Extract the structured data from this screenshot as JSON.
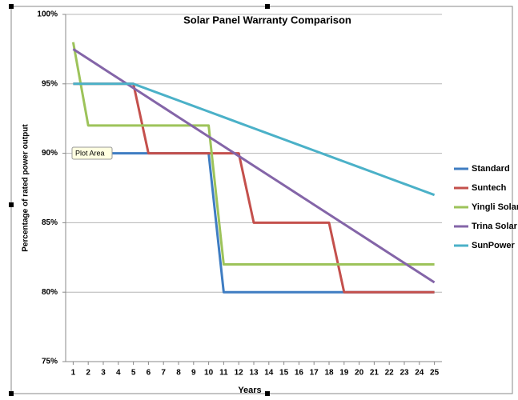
{
  "chart_data": {
    "type": "line",
    "title": "Solar Panel Warranty Comparison",
    "x_label": "Years",
    "y_label": "Percentage of rated power output",
    "tooltip": "Plot Area",
    "x": [
      1,
      2,
      3,
      4,
      5,
      6,
      7,
      8,
      9,
      10,
      11,
      12,
      13,
      14,
      15,
      16,
      17,
      18,
      19,
      20,
      21,
      22,
      23,
      24,
      25
    ],
    "xlim": [
      0.5,
      25.5
    ],
    "xticks": [
      1,
      2,
      3,
      4,
      5,
      6,
      7,
      8,
      9,
      10,
      11,
      12,
      13,
      14,
      15,
      16,
      17,
      18,
      19,
      20,
      21,
      22,
      23,
      24,
      25
    ],
    "ylim": [
      75,
      100
    ],
    "yticks": [
      {
        "value": 75,
        "label": "75%"
      },
      {
        "value": 80,
        "label": "80%"
      },
      {
        "value": 85,
        "label": "85%"
      },
      {
        "value": 90,
        "label": "90%"
      },
      {
        "value": 95,
        "label": "95%"
      },
      {
        "value": 100,
        "label": "100%"
      }
    ],
    "grid": true,
    "legend": "right",
    "series": [
      {
        "name": "Standard",
        "color": "#3f7dc2",
        "values": [
          90,
          90,
          90,
          90,
          90,
          90,
          90,
          90,
          90,
          90,
          80,
          80,
          80,
          80,
          80,
          80,
          80,
          80,
          80,
          80,
          80,
          80,
          80,
          80,
          80
        ]
      },
      {
        "name": "Suntech",
        "color": "#c4504c",
        "values": [
          95,
          95,
          95,
          95,
          95,
          90,
          90,
          90,
          90,
          90,
          90,
          90,
          85,
          85,
          85,
          85,
          85,
          85,
          80,
          80,
          80,
          80,
          80,
          80,
          80
        ]
      },
      {
        "name": "Yingli Solar",
        "color": "#9dc35a",
        "values": [
          98,
          92,
          92,
          92,
          92,
          92,
          92,
          92,
          92,
          92,
          82,
          82,
          82,
          82,
          82,
          82,
          82,
          82,
          82,
          82,
          82,
          82,
          82,
          82,
          82
        ]
      },
      {
        "name": "Trina Solar",
        "color": "#8465a8",
        "values": [
          97.5,
          96.8,
          96.1,
          95.4,
          94.7,
          94,
          93.3,
          92.6,
          91.9,
          91.2,
          90.5,
          89.8,
          89.1,
          88.4,
          87.7,
          87,
          86.3,
          85.6,
          84.9,
          84.2,
          83.5,
          82.8,
          82.1,
          81.4,
          80.7
        ]
      },
      {
        "name": "SunPower",
        "color": "#4bb1c8",
        "values": [
          95,
          95,
          95,
          95,
          95,
          94.6,
          94.2,
          93.8,
          93.4,
          93,
          92.6,
          92.2,
          91.8,
          91.4,
          91,
          90.6,
          90.2,
          89.8,
          89.4,
          89,
          88.6,
          88.2,
          87.8,
          87.4,
          87
        ]
      }
    ]
  }
}
